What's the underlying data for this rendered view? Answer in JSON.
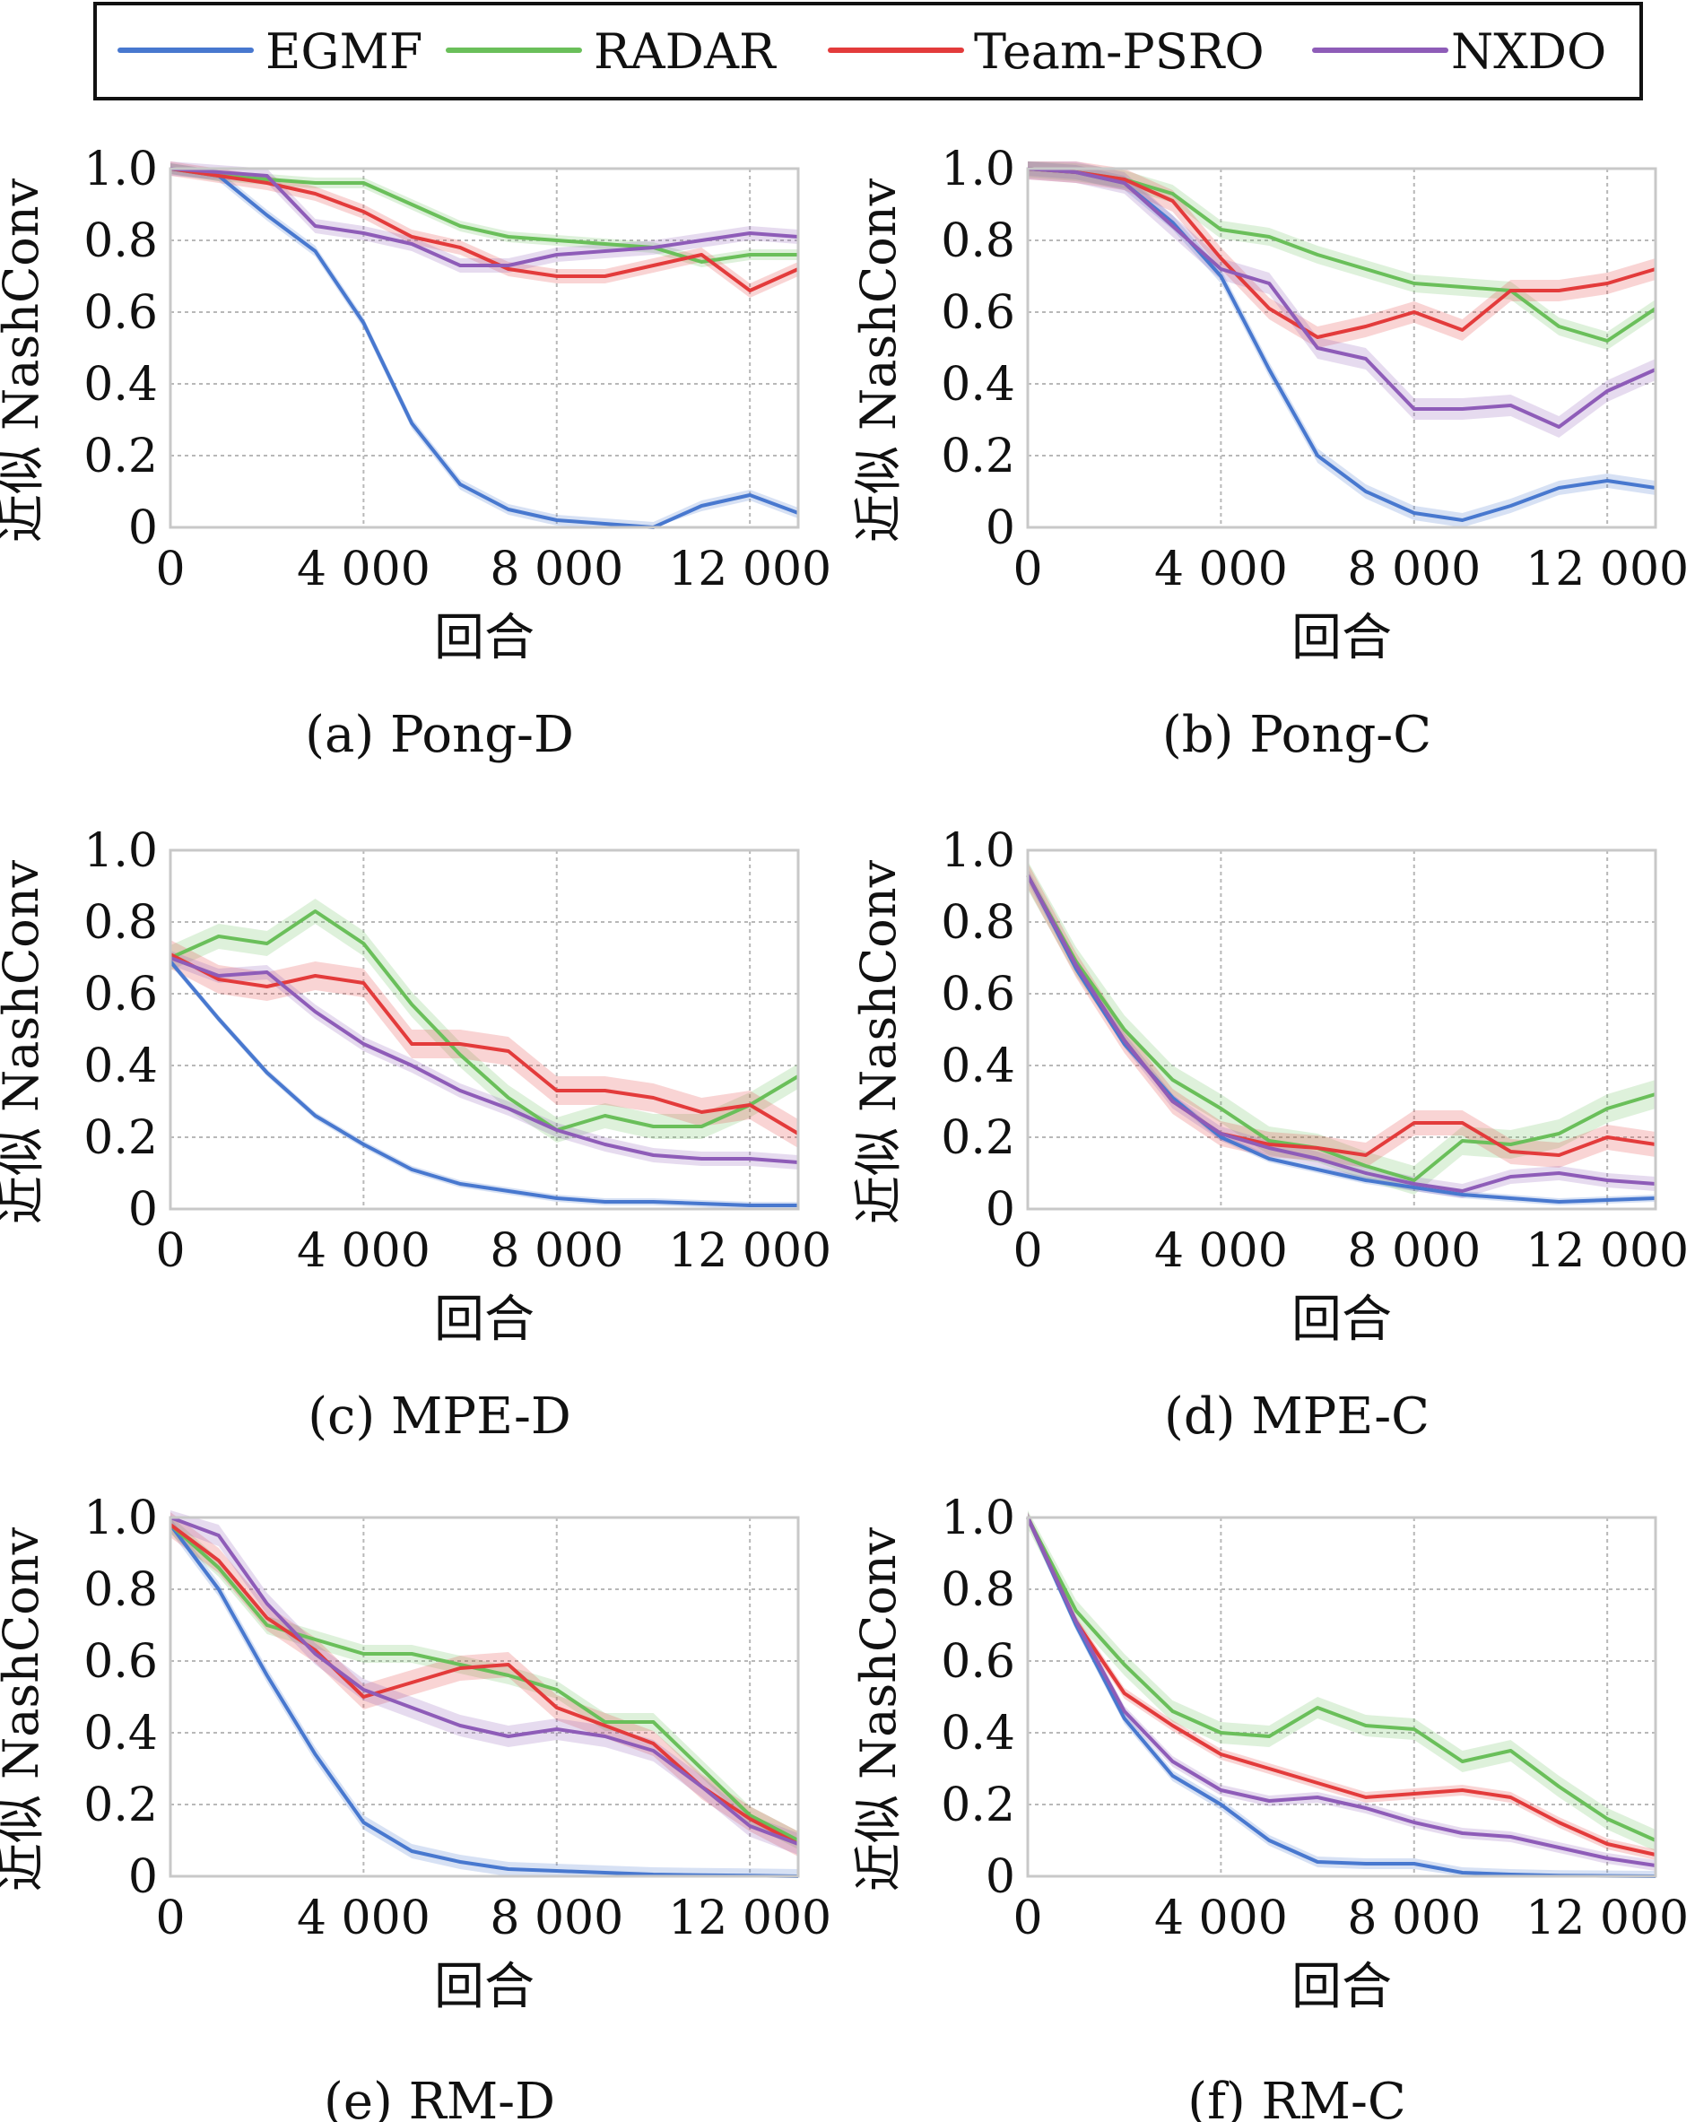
{
  "legend": [
    {
      "name": "EGMF",
      "color": "#4878cf"
    },
    {
      "name": "RADAR",
      "color": "#6abf5a"
    },
    {
      "name": "Team-PSRO",
      "color": "#e33b3b"
    },
    {
      "name": "NXDO",
      "color": "#8e5cb8"
    }
  ],
  "chart_data": [
    {
      "type": "line",
      "caption": "(a) Pong-D",
      "xlabel": "回合",
      "ylabel": "近似 NashConv",
      "xlim": [
        0,
        13000
      ],
      "ylim": [
        0,
        1.0
      ],
      "xticks": [
        0,
        4000,
        8000,
        12000
      ],
      "xtick_labels": [
        "0",
        "4 000",
        "8 000",
        "12 000"
      ],
      "yticks": [
        0,
        0.2,
        0.4,
        0.6,
        0.8,
        1.0
      ],
      "ytick_labels": [
        "0",
        "0.2",
        "0.4",
        "0.6",
        "0.8",
        "1.0"
      ],
      "grid": true,
      "x": [
        0,
        1000,
        2000,
        3000,
        4000,
        5000,
        6000,
        7000,
        8000,
        9000,
        10000,
        11000,
        12000,
        13000
      ],
      "series": [
        {
          "name": "EGMF",
          "values": [
            1.0,
            0.98,
            0.87,
            0.77,
            0.57,
            0.29,
            0.12,
            0.05,
            0.02,
            0.01,
            0.0,
            0.06,
            0.09,
            0.04
          ],
          "band": 0.015
        },
        {
          "name": "RADAR",
          "values": [
            1.0,
            0.98,
            0.97,
            0.96,
            0.96,
            0.9,
            0.84,
            0.81,
            0.8,
            0.79,
            0.78,
            0.74,
            0.76,
            0.76
          ],
          "band": 0.015
        },
        {
          "name": "Team-PSRO",
          "values": [
            1.0,
            0.98,
            0.96,
            0.93,
            0.88,
            0.81,
            0.78,
            0.72,
            0.7,
            0.7,
            0.73,
            0.76,
            0.66,
            0.72
          ],
          "band": 0.02
        },
        {
          "name": "NXDO",
          "values": [
            1.0,
            0.99,
            0.98,
            0.84,
            0.82,
            0.79,
            0.73,
            0.73,
            0.76,
            0.77,
            0.78,
            0.8,
            0.82,
            0.81
          ],
          "band": 0.02
        }
      ]
    },
    {
      "type": "line",
      "caption": "(b) Pong-C",
      "xlabel": "回合",
      "ylabel": "近似 NashConv",
      "xlim": [
        0,
        13000
      ],
      "ylim": [
        0,
        1.0
      ],
      "xticks": [
        0,
        4000,
        8000,
        12000
      ],
      "xtick_labels": [
        "0",
        "4 000",
        "8 000",
        "12 000"
      ],
      "yticks": [
        0,
        0.2,
        0.4,
        0.6,
        0.8,
        1.0
      ],
      "ytick_labels": [
        "0",
        "0.2",
        "0.4",
        "0.6",
        "0.8",
        "1.0"
      ],
      "grid": true,
      "x": [
        0,
        1000,
        2000,
        3000,
        4000,
        5000,
        6000,
        7000,
        8000,
        9000,
        10000,
        11000,
        12000,
        13000
      ],
      "series": [
        {
          "name": "EGMF",
          "values": [
            1.0,
            0.99,
            0.96,
            0.85,
            0.7,
            0.44,
            0.2,
            0.1,
            0.04,
            0.02,
            0.06,
            0.11,
            0.13,
            0.11
          ],
          "band": 0.02
        },
        {
          "name": "RADAR",
          "values": [
            1.0,
            0.99,
            0.97,
            0.93,
            0.83,
            0.81,
            0.76,
            0.72,
            0.68,
            0.67,
            0.66,
            0.56,
            0.52,
            0.61
          ],
          "band": 0.025
        },
        {
          "name": "Team-PSRO",
          "values": [
            1.0,
            0.99,
            0.97,
            0.91,
            0.75,
            0.61,
            0.53,
            0.56,
            0.6,
            0.55,
            0.66,
            0.66,
            0.68,
            0.72
          ],
          "band": 0.03
        },
        {
          "name": "NXDO",
          "values": [
            1.0,
            0.99,
            0.96,
            0.84,
            0.72,
            0.68,
            0.5,
            0.47,
            0.33,
            0.33,
            0.34,
            0.28,
            0.38,
            0.44
          ],
          "band": 0.03
        }
      ]
    },
    {
      "type": "line",
      "caption": "(c) MPE-D",
      "xlabel": "回合",
      "ylabel": "近似 NashConv",
      "xlim": [
        0,
        13000
      ],
      "ylim": [
        0,
        1.0
      ],
      "xticks": [
        0,
        4000,
        8000,
        12000
      ],
      "xtick_labels": [
        "0",
        "4 000",
        "8 000",
        "12 000"
      ],
      "yticks": [
        0,
        0.2,
        0.4,
        0.6,
        0.8,
        1.0
      ],
      "ytick_labels": [
        "0",
        "0.2",
        "0.4",
        "0.6",
        "0.8",
        "1.0"
      ],
      "grid": true,
      "x": [
        0,
        1000,
        2000,
        3000,
        4000,
        5000,
        6000,
        7000,
        8000,
        9000,
        10000,
        11000,
        12000,
        13000
      ],
      "series": [
        {
          "name": "EGMF",
          "values": [
            0.69,
            0.53,
            0.38,
            0.26,
            0.18,
            0.11,
            0.07,
            0.05,
            0.03,
            0.02,
            0.02,
            0.015,
            0.01,
            0.01
          ],
          "band": 0.01
        },
        {
          "name": "RADAR",
          "values": [
            0.7,
            0.76,
            0.74,
            0.83,
            0.74,
            0.57,
            0.43,
            0.31,
            0.22,
            0.26,
            0.23,
            0.23,
            0.29,
            0.37
          ],
          "band": 0.035
        },
        {
          "name": "Team-PSRO",
          "values": [
            0.71,
            0.64,
            0.62,
            0.65,
            0.63,
            0.46,
            0.46,
            0.44,
            0.33,
            0.33,
            0.31,
            0.27,
            0.29,
            0.21
          ],
          "band": 0.04
        },
        {
          "name": "NXDO",
          "values": [
            0.7,
            0.65,
            0.66,
            0.55,
            0.46,
            0.4,
            0.33,
            0.28,
            0.22,
            0.18,
            0.15,
            0.14,
            0.14,
            0.13
          ],
          "band": 0.02
        }
      ]
    },
    {
      "type": "line",
      "caption": "(d) MPE-C",
      "xlabel": "回合",
      "ylabel": "近似 NashConv",
      "xlim": [
        0,
        13000
      ],
      "ylim": [
        0,
        1.0
      ],
      "xticks": [
        0,
        4000,
        8000,
        12000
      ],
      "xtick_labels": [
        "0",
        "4 000",
        "8 000",
        "12 000"
      ],
      "yticks": [
        0,
        0.2,
        0.4,
        0.6,
        0.8,
        1.0
      ],
      "ytick_labels": [
        "0",
        "0.2",
        "0.4",
        "0.6",
        "0.8",
        "1.0"
      ],
      "grid": true,
      "x": [
        0,
        1000,
        2000,
        3000,
        4000,
        5000,
        6000,
        7000,
        8000,
        9000,
        10000,
        11000,
        12000,
        13000
      ],
      "series": [
        {
          "name": "EGMF",
          "values": [
            0.93,
            0.67,
            0.46,
            0.31,
            0.2,
            0.14,
            0.11,
            0.08,
            0.06,
            0.04,
            0.03,
            0.02,
            0.025,
            0.03
          ],
          "band": 0.01
        },
        {
          "name": "RADAR",
          "values": [
            0.93,
            0.69,
            0.5,
            0.36,
            0.28,
            0.19,
            0.17,
            0.12,
            0.08,
            0.19,
            0.18,
            0.21,
            0.28,
            0.32
          ],
          "band": 0.04
        },
        {
          "name": "Team-PSRO",
          "values": [
            0.93,
            0.68,
            0.47,
            0.3,
            0.21,
            0.18,
            0.17,
            0.15,
            0.24,
            0.24,
            0.16,
            0.15,
            0.2,
            0.18
          ],
          "band": 0.035
        },
        {
          "name": "NXDO",
          "values": [
            0.93,
            0.68,
            0.47,
            0.3,
            0.21,
            0.17,
            0.14,
            0.1,
            0.07,
            0.05,
            0.09,
            0.1,
            0.08,
            0.07
          ],
          "band": 0.02
        }
      ]
    },
    {
      "type": "line",
      "caption": "(e) RM-D",
      "xlabel": "回合",
      "ylabel": "近似 NashConv",
      "xlim": [
        0,
        13000
      ],
      "ylim": [
        0,
        1.0
      ],
      "xticks": [
        0,
        4000,
        8000,
        12000
      ],
      "xtick_labels": [
        "0",
        "4 000",
        "8 000",
        "12 000"
      ],
      "yticks": [
        0,
        0.2,
        0.4,
        0.6,
        0.8,
        1.0
      ],
      "ytick_labels": [
        "0",
        "0.2",
        "0.4",
        "0.6",
        "0.8",
        "1.0"
      ],
      "grid": true,
      "x": [
        0,
        1000,
        2000,
        3000,
        4000,
        5000,
        6000,
        7000,
        8000,
        9000,
        10000,
        11000,
        12000,
        13000
      ],
      "series": [
        {
          "name": "EGMF",
          "values": [
            0.98,
            0.8,
            0.56,
            0.34,
            0.15,
            0.07,
            0.04,
            0.02,
            0.015,
            0.01,
            0.005,
            0.003,
            0.002,
            0.0
          ],
          "band": 0.02
        },
        {
          "name": "RADAR",
          "values": [
            0.98,
            0.86,
            0.7,
            0.66,
            0.62,
            0.62,
            0.59,
            0.56,
            0.52,
            0.43,
            0.43,
            0.3,
            0.17,
            0.1
          ],
          "band": 0.025
        },
        {
          "name": "Team-PSRO",
          "values": [
            0.98,
            0.88,
            0.72,
            0.63,
            0.5,
            0.54,
            0.58,
            0.59,
            0.47,
            0.42,
            0.37,
            0.25,
            0.16,
            0.09
          ],
          "band": 0.035
        },
        {
          "name": "NXDO",
          "values": [
            1.0,
            0.95,
            0.76,
            0.62,
            0.52,
            0.47,
            0.42,
            0.39,
            0.41,
            0.39,
            0.35,
            0.25,
            0.14,
            0.09
          ],
          "band": 0.03
        }
      ]
    },
    {
      "type": "line",
      "caption": "(f) RM-C",
      "xlabel": "回合",
      "ylabel": "近似 NashConv",
      "xlim": [
        0,
        13000
      ],
      "ylim": [
        0,
        1.0
      ],
      "xticks": [
        0,
        4000,
        8000,
        12000
      ],
      "xtick_labels": [
        "0",
        "4 000",
        "8 000",
        "12 000"
      ],
      "yticks": [
        0,
        0.2,
        0.4,
        0.6,
        0.8,
        1.0
      ],
      "ytick_labels": [
        "0",
        "0.2",
        "0.4",
        "0.6",
        "0.8",
        "1.0"
      ],
      "grid": true,
      "x": [
        0,
        1000,
        2000,
        3000,
        4000,
        5000,
        6000,
        7000,
        8000,
        9000,
        10000,
        11000,
        12000,
        13000
      ],
      "series": [
        {
          "name": "EGMF",
          "values": [
            1.0,
            0.7,
            0.44,
            0.28,
            0.2,
            0.1,
            0.04,
            0.035,
            0.035,
            0.01,
            0.005,
            0.002,
            0.001,
            0.0
          ],
          "band": 0.015
        },
        {
          "name": "RADAR",
          "values": [
            1.0,
            0.74,
            0.59,
            0.46,
            0.4,
            0.39,
            0.47,
            0.42,
            0.41,
            0.32,
            0.35,
            0.25,
            0.16,
            0.1
          ],
          "band": 0.03
        },
        {
          "name": "Team-PSRO",
          "values": [
            1.0,
            0.71,
            0.51,
            0.42,
            0.34,
            0.3,
            0.26,
            0.22,
            0.23,
            0.24,
            0.22,
            0.15,
            0.09,
            0.06
          ],
          "band": 0.015
        },
        {
          "name": "NXDO",
          "values": [
            1.0,
            0.71,
            0.46,
            0.32,
            0.24,
            0.21,
            0.22,
            0.19,
            0.15,
            0.12,
            0.11,
            0.08,
            0.05,
            0.03
          ],
          "band": 0.015
        }
      ]
    }
  ]
}
